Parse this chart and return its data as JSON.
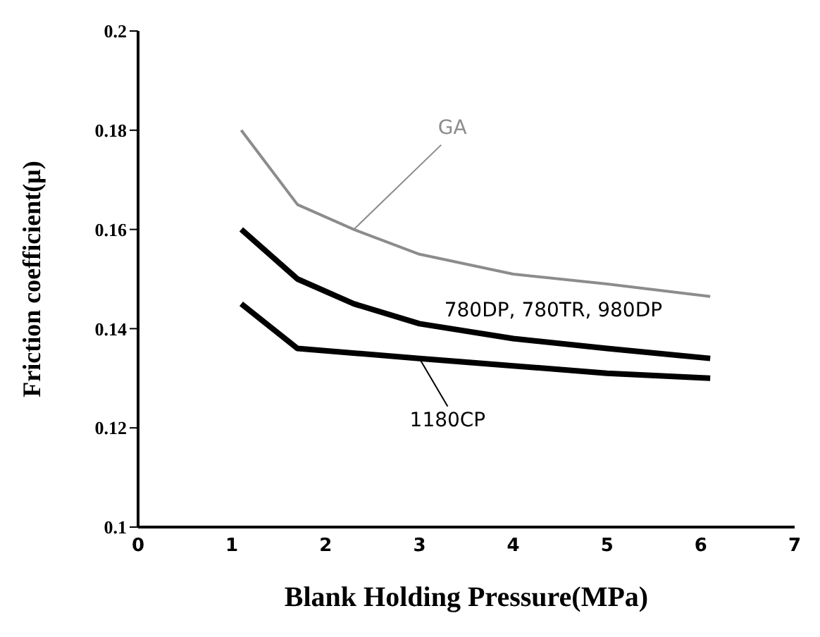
{
  "chart_data": {
    "type": "line",
    "xlabel": "Blank Holding Pressure(MPa)",
    "ylabel": "Friction coefficient(μ)",
    "xlim": [
      0,
      7
    ],
    "xticks": [
      0,
      1,
      2,
      3,
      4,
      5,
      6,
      7
    ],
    "ylim": [
      0.1,
      0.2
    ],
    "yticks": [
      0.1,
      0.12,
      0.14,
      0.16,
      0.18,
      0.2
    ],
    "grid": false,
    "legend": false,
    "marker": "none",
    "line_style": "solid",
    "series": [
      {
        "name": "GA",
        "color": "#8c8c8c",
        "x": [
          1.1,
          1.7,
          2.3,
          3,
          4,
          5,
          6.1
        ],
        "values": [
          0.18,
          0.165,
          0.16,
          0.155,
          0.151,
          0.149,
          0.1465
        ]
      },
      {
        "name": "780DP, 780TR, 980DP",
        "color": "#000000",
        "x": [
          1.1,
          1.7,
          2.3,
          3,
          4,
          5,
          6.1
        ],
        "values": [
          0.16,
          0.15,
          0.145,
          0.141,
          0.138,
          0.136,
          0.134
        ]
      },
      {
        "name": "1180CP",
        "color": "#000000",
        "x": [
          1.1,
          1.7,
          3,
          4,
          5,
          6.1
        ],
        "values": [
          0.145,
          0.136,
          0.134,
          0.1325,
          0.131,
          0.13
        ]
      }
    ]
  }
}
